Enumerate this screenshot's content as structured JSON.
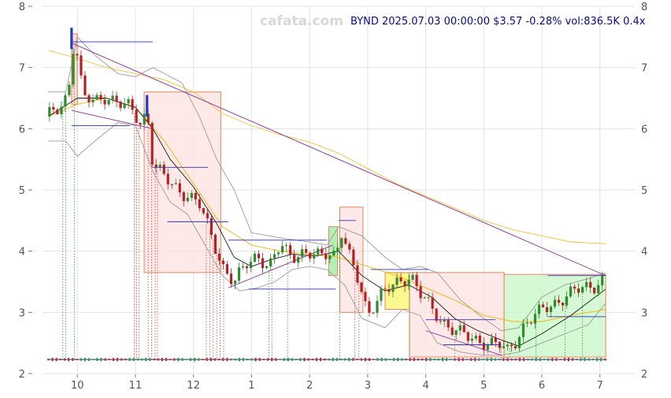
{
  "watermark": "cafata.com",
  "header": "BYND 2025.07.03 00:00:00 $3.57 -0.28% vol:836.5K 0.4x",
  "chart_data": {
    "type": "candlestick",
    "ticker": "BYND",
    "ylim": [
      2,
      8
    ],
    "xlim": [
      -0.6,
      9.6
    ],
    "y_ticks": [
      2,
      3,
      4,
      5,
      6,
      7,
      8
    ],
    "x_ticks": [
      {
        "pos": 0,
        "label": "10"
      },
      {
        "pos": 1,
        "label": "11"
      },
      {
        "pos": 2,
        "label": "12"
      },
      {
        "pos": 3,
        "label": "1"
      },
      {
        "pos": 4,
        "label": "2"
      },
      {
        "pos": 5,
        "label": "3"
      },
      {
        "pos": 6,
        "label": "4"
      },
      {
        "pos": 7,
        "label": "5"
      },
      {
        "pos": 8,
        "label": "6"
      },
      {
        "pos": 9,
        "label": "7"
      }
    ],
    "grid": true,
    "last_close": 3.57,
    "close_path": [
      [
        -0.5,
        6.2
      ],
      [
        -0.3,
        6.35
      ],
      [
        -0.15,
        6.6
      ],
      [
        -0.1,
        7.4
      ],
      [
        0.0,
        7.2
      ],
      [
        0.1,
        6.5
      ],
      [
        0.3,
        6.45
      ],
      [
        0.5,
        6.55
      ],
      [
        0.7,
        6.4
      ],
      [
        0.9,
        6.35
      ],
      [
        1.1,
        6.1
      ],
      [
        1.2,
        6.3
      ],
      [
        1.3,
        5.4
      ],
      [
        1.5,
        5.2
      ],
      [
        1.7,
        5.05
      ],
      [
        1.9,
        4.9
      ],
      [
        2.1,
        4.75
      ],
      [
        2.3,
        4.3
      ],
      [
        2.5,
        3.75
      ],
      [
        2.7,
        3.45
      ],
      [
        2.9,
        3.8
      ],
      [
        3.1,
        3.95
      ],
      [
        3.3,
        3.7
      ],
      [
        3.5,
        4.1
      ],
      [
        3.7,
        3.95
      ],
      [
        3.9,
        3.95
      ],
      [
        4.1,
        3.9
      ],
      [
        4.3,
        4.0
      ],
      [
        4.45,
        3.95
      ],
      [
        4.55,
        4.3
      ],
      [
        4.7,
        3.85
      ],
      [
        4.85,
        3.5
      ],
      [
        5.0,
        3.0
      ],
      [
        5.2,
        3.25
      ],
      [
        5.4,
        3.4
      ],
      [
        5.6,
        3.55
      ],
      [
        5.75,
        3.6
      ],
      [
        5.9,
        3.3
      ],
      [
        6.1,
        3.05
      ],
      [
        6.3,
        2.85
      ],
      [
        6.5,
        2.7
      ],
      [
        6.7,
        2.6
      ],
      [
        6.9,
        2.55
      ],
      [
        7.1,
        2.5
      ],
      [
        7.3,
        2.45
      ],
      [
        7.4,
        2.35
      ],
      [
        7.55,
        2.55
      ],
      [
        7.7,
        2.8
      ],
      [
        7.9,
        2.95
      ],
      [
        8.1,
        3.1
      ],
      [
        8.3,
        3.2
      ],
      [
        8.5,
        3.3
      ],
      [
        8.7,
        3.4
      ],
      [
        8.9,
        3.45
      ],
      [
        9.1,
        3.57
      ]
    ],
    "ma_fast": [
      [
        -0.5,
        6.2
      ],
      [
        0.0,
        6.5
      ],
      [
        0.5,
        6.5
      ],
      [
        1.0,
        6.35
      ],
      [
        1.3,
        6.0
      ],
      [
        1.6,
        5.5
      ],
      [
        2.0,
        5.05
      ],
      [
        2.4,
        4.45
      ],
      [
        2.7,
        3.9
      ],
      [
        3.0,
        3.75
      ],
      [
        3.3,
        3.85
      ],
      [
        3.7,
        3.95
      ],
      [
        4.1,
        3.92
      ],
      [
        4.5,
        4.0
      ],
      [
        4.9,
        3.6
      ],
      [
        5.3,
        3.35
      ],
      [
        5.7,
        3.45
      ],
      [
        6.1,
        3.25
      ],
      [
        6.5,
        2.9
      ],
      [
        6.9,
        2.7
      ],
      [
        7.3,
        2.55
      ],
      [
        7.6,
        2.45
      ],
      [
        8.0,
        2.65
      ],
      [
        8.5,
        2.95
      ],
      [
        9.1,
        3.38
      ]
    ],
    "ma_slow": [
      [
        -0.5,
        7.28
      ],
      [
        0.0,
        7.15
      ],
      [
        0.5,
        7.0
      ],
      [
        1.0,
        6.9
      ],
      [
        1.5,
        6.8
      ],
      [
        2.0,
        6.6
      ],
      [
        2.5,
        6.25
      ],
      [
        3.0,
        6.05
      ],
      [
        3.5,
        5.9
      ],
      [
        4.0,
        5.78
      ],
      [
        4.5,
        5.6
      ],
      [
        5.0,
        5.35
      ],
      [
        5.5,
        5.1
      ],
      [
        6.0,
        4.9
      ],
      [
        6.5,
        4.7
      ],
      [
        7.0,
        4.5
      ],
      [
        7.5,
        4.35
      ],
      [
        8.0,
        4.25
      ],
      [
        8.5,
        4.15
      ],
      [
        9.1,
        4.12
      ]
    ],
    "ma_mid": [
      [
        -0.5,
        6.2
      ],
      [
        0.0,
        6.4
      ],
      [
        0.5,
        6.5
      ],
      [
        1.0,
        6.35
      ],
      [
        1.5,
        5.8
      ],
      [
        2.0,
        5.1
      ],
      [
        2.5,
        4.4
      ],
      [
        3.0,
        4.1
      ],
      [
        3.5,
        4.0
      ],
      [
        4.0,
        3.95
      ],
      [
        4.5,
        3.9
      ],
      [
        5.0,
        3.75
      ],
      [
        5.5,
        3.6
      ],
      [
        6.0,
        3.4
      ],
      [
        6.5,
        3.2
      ],
      [
        7.0,
        2.95
      ],
      [
        7.5,
        2.85
      ],
      [
        8.0,
        2.85
      ],
      [
        8.5,
        2.95
      ],
      [
        9.1,
        3.05
      ]
    ],
    "band_upper": [
      [
        -0.5,
        6.6
      ],
      [
        -0.2,
        6.6
      ],
      [
        0.0,
        7.5
      ],
      [
        0.3,
        7.2
      ],
      [
        0.7,
        6.9
      ],
      [
        1.0,
        6.85
      ],
      [
        1.3,
        7.0
      ],
      [
        1.5,
        6.9
      ],
      [
        1.8,
        6.75
      ],
      [
        2.1,
        6.2
      ],
      [
        2.4,
        5.5
      ],
      [
        2.7,
        5.0
      ],
      [
        3.0,
        4.3
      ],
      [
        3.3,
        4.25
      ],
      [
        3.6,
        4.2
      ],
      [
        4.0,
        4.15
      ],
      [
        4.3,
        4.1
      ],
      [
        4.5,
        4.4
      ],
      [
        4.9,
        4.25
      ],
      [
        5.3,
        3.9
      ],
      [
        5.6,
        3.7
      ],
      [
        5.9,
        3.75
      ],
      [
        6.2,
        3.65
      ],
      [
        6.6,
        3.2
      ],
      [
        7.0,
        2.9
      ],
      [
        7.3,
        2.7
      ],
      [
        7.6,
        2.75
      ],
      [
        8.0,
        3.25
      ],
      [
        8.4,
        3.45
      ],
      [
        8.8,
        3.55
      ],
      [
        9.1,
        3.65
      ]
    ],
    "band_lower": [
      [
        -0.5,
        5.8
      ],
      [
        -0.2,
        5.8
      ],
      [
        0.0,
        5.55
      ],
      [
        0.3,
        5.8
      ],
      [
        0.7,
        6.1
      ],
      [
        1.0,
        6.05
      ],
      [
        1.3,
        5.3
      ],
      [
        1.6,
        4.8
      ],
      [
        1.9,
        4.6
      ],
      [
        2.2,
        4.1
      ],
      [
        2.5,
        3.6
      ],
      [
        2.8,
        3.35
      ],
      [
        3.1,
        3.4
      ],
      [
        3.4,
        3.5
      ],
      [
        3.7,
        3.7
      ],
      [
        4.0,
        3.75
      ],
      [
        4.3,
        3.7
      ],
      [
        4.6,
        3.45
      ],
      [
        4.9,
        2.9
      ],
      [
        5.3,
        2.75
      ],
      [
        5.6,
        3.05
      ],
      [
        5.9,
        2.95
      ],
      [
        6.2,
        2.5
      ],
      [
        6.6,
        2.35
      ],
      [
        7.0,
        2.3
      ],
      [
        7.3,
        2.3
      ],
      [
        7.6,
        2.35
      ],
      [
        8.0,
        2.5
      ],
      [
        8.4,
        2.65
      ],
      [
        8.8,
        2.8
      ],
      [
        9.1,
        3.15
      ]
    ],
    "trend_lines": [
      {
        "from": [
          -0.1,
          7.4
        ],
        "to": [
          9.1,
          3.6
        ]
      },
      {
        "from": [
          -0.1,
          6.3
        ],
        "to": [
          1.3,
          6.0
        ]
      },
      {
        "from": [
          2.6,
          3.4
        ],
        "to": [
          4.4,
          4.1
        ]
      },
      {
        "from": [
          6.0,
          2.7
        ],
        "to": [
          7.3,
          2.3
        ]
      }
    ],
    "zones": [
      {
        "x0": -0.1,
        "x1": 0.0,
        "y0": 6.4,
        "y1": 7.55,
        "fill": "#f8d0d0"
      },
      {
        "x0": 1.15,
        "x1": 2.47,
        "y0": 3.65,
        "y1": 6.6,
        "fill": "#fde2e2"
      },
      {
        "x0": 4.33,
        "x1": 4.48,
        "y0": 3.6,
        "y1": 4.4,
        "fill": "#9ee89e"
      },
      {
        "x0": 4.52,
        "x1": 4.92,
        "y0": 3.0,
        "y1": 4.72,
        "fill": "#fde2e2"
      },
      {
        "x0": 5.3,
        "x1": 5.72,
        "y0": 3.05,
        "y1": 3.65,
        "fill": "#fbf56a"
      },
      {
        "x0": 5.72,
        "x1": 7.35,
        "y0": 2.27,
        "y1": 3.65,
        "fill": "#fde2e2"
      },
      {
        "x0": 7.35,
        "x1": 9.1,
        "y0": 2.27,
        "y1": 3.62,
        "fill": "#c6f7c6"
      }
    ],
    "levels": [
      {
        "x0": -0.1,
        "x1": 1.3,
        "y": 7.42
      },
      {
        "x0": -0.1,
        "x1": 0.9,
        "y": 6.05
      },
      {
        "x0": 1.3,
        "x1": 2.25,
        "y": 5.37
      },
      {
        "x0": 1.55,
        "x1": 2.6,
        "y": 4.48
      },
      {
        "x0": 2.6,
        "x1": 4.3,
        "y": 4.18
      },
      {
        "x0": 2.95,
        "x1": 4.45,
        "y": 3.38
      },
      {
        "x0": 4.5,
        "x1": 4.8,
        "y": 4.5
      },
      {
        "x0": 5.05,
        "x1": 6.05,
        "y": 3.7
      },
      {
        "x0": 6.0,
        "x1": 7.2,
        "y": 2.88
      },
      {
        "x0": 6.3,
        "x1": 7.3,
        "y": 2.47
      },
      {
        "x0": 8.1,
        "x1": 9.1,
        "y": 3.6
      },
      {
        "x0": 8.1,
        "x1": 9.1,
        "y": 2.93
      }
    ],
    "volume_baseline": 2.23
  }
}
